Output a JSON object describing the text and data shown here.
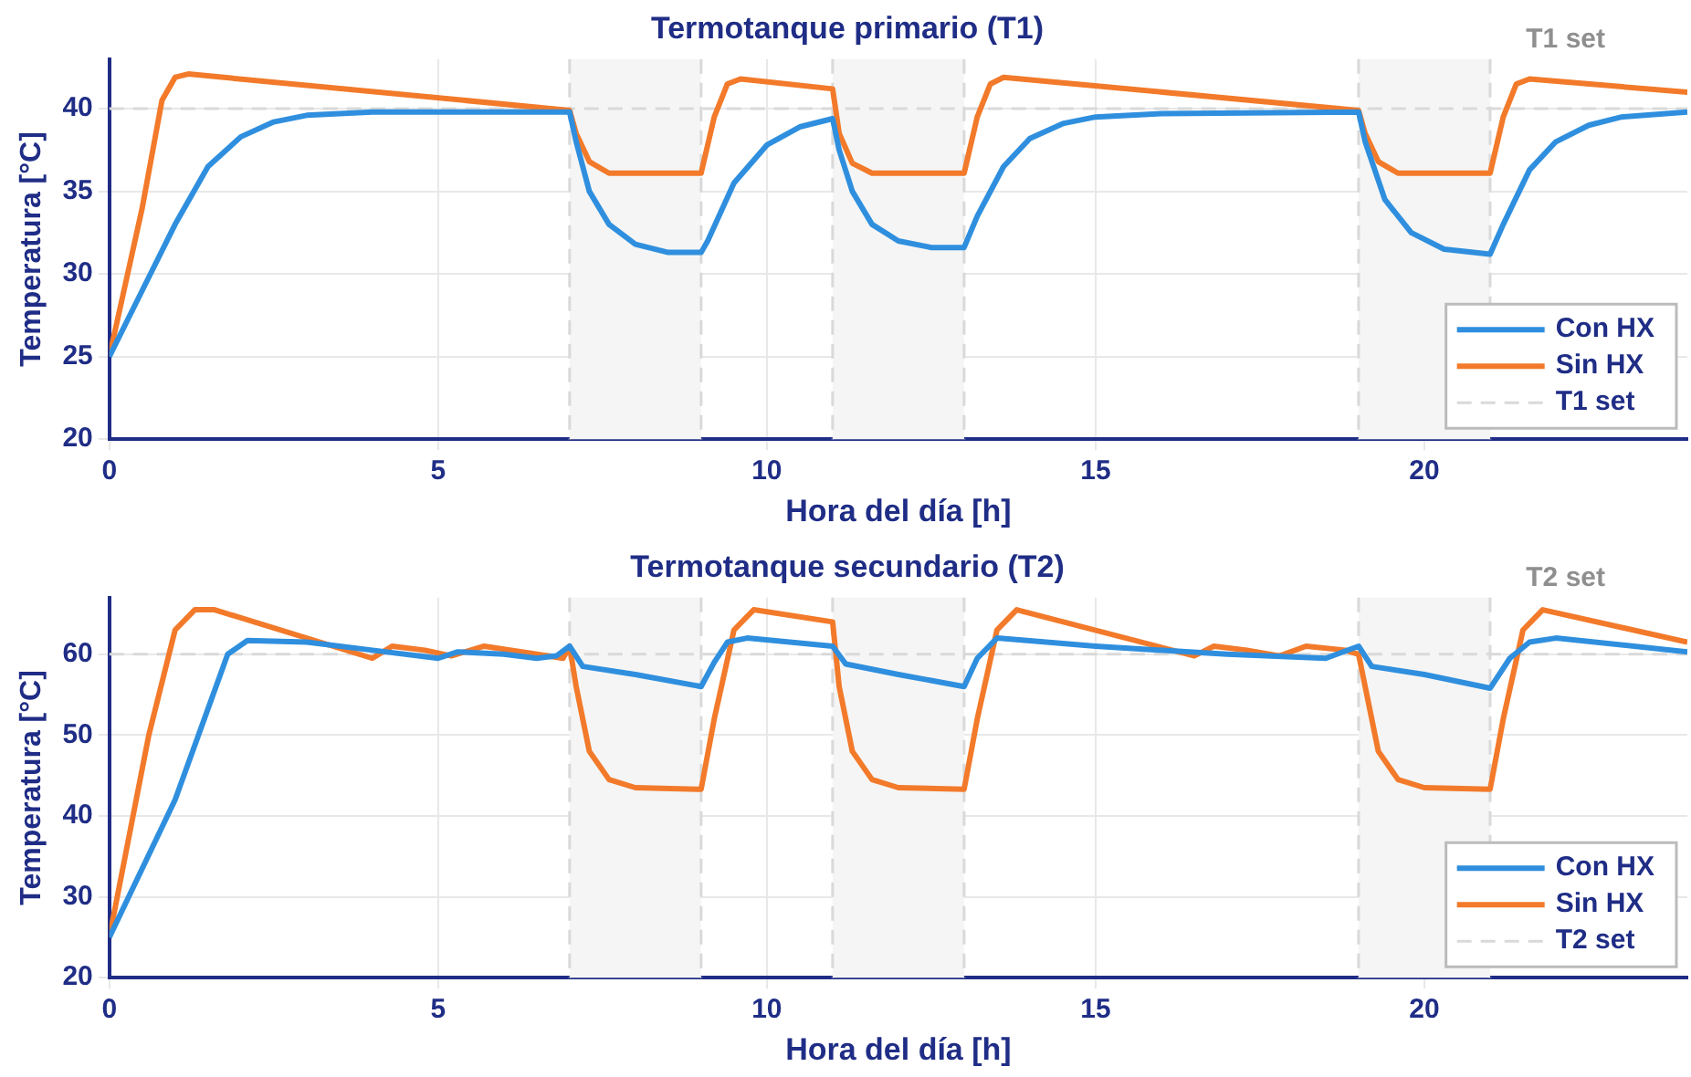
{
  "chart_data": [
    {
      "type": "line",
      "title": "Termotanque primario (T1)",
      "xlabel": "Hora del día [h]",
      "ylabel": "Temperatura [°C]",
      "xlim": [
        0,
        24
      ],
      "xticks": [
        0,
        5,
        10,
        15,
        20
      ],
      "ylim": [
        20,
        43
      ],
      "yticks": [
        20,
        25,
        30,
        35,
        40
      ],
      "grid": true,
      "legend": "bottom right",
      "line_style": "solid",
      "series": [
        {
          "name": "Con HX",
          "color": "#2f8fde",
          "x": [
            0,
            0.5,
            1,
            1.5,
            2,
            2.5,
            3,
            4,
            7,
            7.1,
            7.3,
            7.6,
            8,
            8.5,
            9,
            9.1,
            9.5,
            10,
            10.5,
            11,
            11.1,
            11.3,
            11.6,
            12,
            12.5,
            13,
            13.2,
            13.6,
            14,
            14.5,
            15,
            16,
            19,
            19.1,
            19.4,
            19.8,
            20.3,
            21,
            21.2,
            21.6,
            22,
            22.5,
            23,
            24
          ],
          "values": [
            25,
            29,
            33,
            36.5,
            38.3,
            39.2,
            39.6,
            39.8,
            39.8,
            38,
            35,
            33,
            31.8,
            31.3,
            31.3,
            32,
            35.5,
            37.8,
            38.9,
            39.4,
            37.5,
            35,
            33,
            32,
            31.6,
            31.6,
            33.5,
            36.5,
            38.2,
            39.1,
            39.5,
            39.7,
            39.8,
            38,
            34.5,
            32.5,
            31.5,
            31.2,
            33,
            36.3,
            38,
            39,
            39.5,
            39.8
          ]
        },
        {
          "name": "Sin HX",
          "color": "#f27a2a",
          "x": [
            0,
            0.5,
            0.8,
            1,
            1.2,
            7,
            7.1,
            7.3,
            7.6,
            9,
            9.2,
            9.4,
            9.6,
            11,
            11.1,
            11.3,
            11.6,
            13,
            13.2,
            13.4,
            13.6,
            19,
            19.1,
            19.3,
            19.6,
            21,
            21.2,
            21.4,
            21.6,
            24
          ],
          "values": [
            25,
            34,
            40.5,
            41.9,
            42.1,
            39.9,
            38.5,
            36.8,
            36.1,
            36.1,
            39.5,
            41.5,
            41.8,
            41.2,
            38.5,
            36.7,
            36.1,
            36.1,
            39.5,
            41.5,
            41.9,
            39.9,
            38.5,
            36.8,
            36.1,
            36.1,
            39.5,
            41.5,
            41.8,
            41
          ]
        }
      ],
      "ref_lines": [
        {
          "axis": "y",
          "value": 40,
          "label": "T1 set",
          "color": "#d9d9d9",
          "line_style": "dashed"
        },
        {
          "axis": "x",
          "value": 7,
          "color": "#d9d9d9",
          "line_style": "dashed"
        },
        {
          "axis": "x",
          "value": 9,
          "color": "#d9d9d9",
          "line_style": "dashed"
        },
        {
          "axis": "x",
          "value": 11,
          "color": "#d9d9d9",
          "line_style": "dashed"
        },
        {
          "axis": "x",
          "value": 13,
          "color": "#d9d9d9",
          "line_style": "dashed"
        },
        {
          "axis": "x",
          "value": 19,
          "color": "#d9d9d9",
          "line_style": "dashed"
        },
        {
          "axis": "x",
          "value": 21,
          "color": "#d9d9d9",
          "line_style": "dashed"
        }
      ],
      "bands": [
        {
          "axis": "x",
          "from": 7,
          "to": 9,
          "color": "#f5f5f5"
        },
        {
          "axis": "x",
          "from": 11,
          "to": 13,
          "color": "#f5f5f5"
        },
        {
          "axis": "x",
          "from": 19,
          "to": 21,
          "color": "#f5f5f5"
        }
      ]
    },
    {
      "type": "line",
      "title": "Termotanque secundario (T2)",
      "xlabel": "Hora del día [h]",
      "ylabel": "Temperatura [°C]",
      "xlim": [
        0,
        24
      ],
      "xticks": [
        0,
        5,
        10,
        15,
        20
      ],
      "ylim": [
        20,
        67
      ],
      "yticks": [
        20,
        30,
        40,
        50,
        60
      ],
      "grid": true,
      "legend": "bottom right",
      "line_style": "solid",
      "series": [
        {
          "name": "Con HX",
          "color": "#2f8fde",
          "x": [
            0,
            1,
            1.8,
            2.1,
            3,
            4,
            5,
            5.3,
            6,
            6.5,
            6.8,
            7,
            7.2,
            8,
            9,
            9.2,
            9.4,
            9.7,
            11,
            11.2,
            12,
            13,
            13.2,
            13.5,
            15,
            17,
            18.5,
            19,
            19.2,
            20,
            21,
            21.3,
            21.6,
            22,
            24
          ],
          "values": [
            25,
            42,
            60,
            61.7,
            61.5,
            60.5,
            59.5,
            60.3,
            60,
            59.5,
            59.8,
            61,
            58.5,
            57.5,
            56,
            59,
            61.5,
            62,
            61,
            58.8,
            57.5,
            56,
            59.5,
            62,
            61,
            60,
            59.5,
            61,
            58.5,
            57.5,
            55.8,
            59.5,
            61.5,
            62,
            60.3
          ]
        },
        {
          "name": "Sin HX",
          "color": "#f27a2a",
          "x": [
            0,
            0.6,
            1,
            1.3,
            1.6,
            4,
            4.3,
            4.8,
            5.2,
            5.7,
            6.5,
            6.9,
            7,
            7.1,
            7.3,
            7.6,
            8,
            9,
            9.2,
            9.5,
            9.8,
            11,
            11.1,
            11.3,
            11.6,
            12,
            13,
            13.2,
            13.5,
            13.8,
            16.5,
            16.8,
            17.3,
            17.8,
            18.2,
            18.8,
            19,
            19.1,
            19.3,
            19.6,
            20,
            21,
            21.2,
            21.5,
            21.8,
            24
          ],
          "values": [
            25,
            50,
            63,
            65.5,
            65.5,
            59.5,
            61,
            60.5,
            59.8,
            61,
            60,
            59.5,
            61,
            56,
            48,
            44.5,
            43.5,
            43.3,
            52,
            63,
            65.5,
            64,
            56,
            48,
            44.5,
            43.5,
            43.3,
            52,
            63,
            65.5,
            59.8,
            61,
            60.5,
            59.8,
            61,
            60.5,
            60,
            56,
            48,
            44.5,
            43.5,
            43.3,
            52,
            63,
            65.5,
            61.5
          ]
        }
      ],
      "ref_lines": [
        {
          "axis": "y",
          "value": 60,
          "label": "T2 set",
          "color": "#d9d9d9",
          "line_style": "dashed"
        },
        {
          "axis": "x",
          "value": 7,
          "color": "#d9d9d9",
          "line_style": "dashed"
        },
        {
          "axis": "x",
          "value": 9,
          "color": "#d9d9d9",
          "line_style": "dashed"
        },
        {
          "axis": "x",
          "value": 11,
          "color": "#d9d9d9",
          "line_style": "dashed"
        },
        {
          "axis": "x",
          "value": 13,
          "color": "#d9d9d9",
          "line_style": "dashed"
        },
        {
          "axis": "x",
          "value": 19,
          "color": "#d9d9d9",
          "line_style": "dashed"
        },
        {
          "axis": "x",
          "value": 21,
          "color": "#d9d9d9",
          "line_style": "dashed"
        }
      ],
      "bands": [
        {
          "axis": "x",
          "from": 7,
          "to": 9,
          "color": "#f5f5f5"
        },
        {
          "axis": "x",
          "from": 11,
          "to": 13,
          "color": "#f5f5f5"
        },
        {
          "axis": "x",
          "from": 19,
          "to": 21,
          "color": "#f5f5f5"
        }
      ]
    }
  ]
}
